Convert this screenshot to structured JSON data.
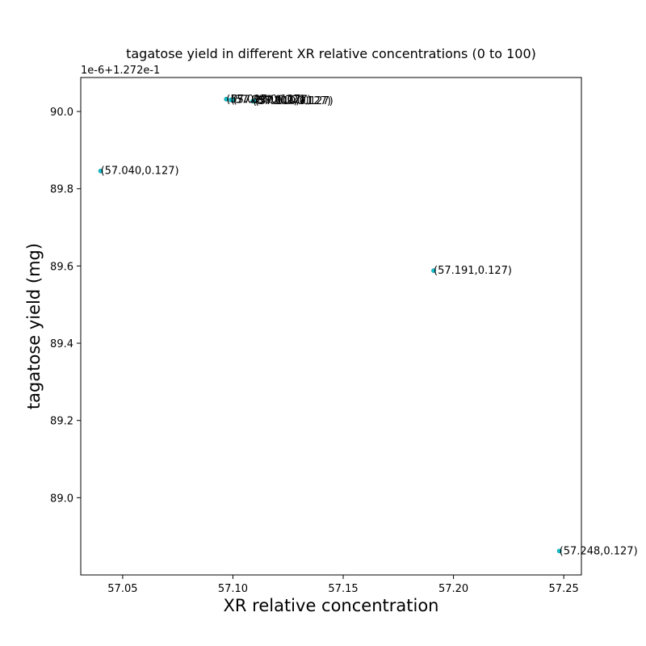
{
  "chart_data": {
    "type": "scatter",
    "title": "tagatose yield in different XR relative concentrations (0 to 100)",
    "xlabel": "XR relative concentration",
    "ylabel": "tagatose yield (mg)",
    "y_offset_label": "1e-6+1.272e-1",
    "xlim": [
      57.031,
      57.258
    ],
    "ylim": [
      88.8,
      90.088
    ],
    "x_ticks": [
      57.05,
      57.1,
      57.15,
      57.2,
      57.25
    ],
    "x_tick_labels": [
      "57.05",
      "57.10",
      "57.15",
      "57.20",
      "57.25"
    ],
    "y_ticks": [
      89.0,
      89.2,
      89.4,
      89.6,
      89.8,
      90.0
    ],
    "y_tick_labels": [
      "89.0",
      "89.2",
      "89.4",
      "89.6",
      "89.8",
      "90.0"
    ],
    "points": [
      {
        "x": 57.04,
        "y": 89.846,
        "label": "(57.040,0.127)"
      },
      {
        "x": 57.097,
        "y": 90.032,
        "label": "(57.097,0.127)"
      },
      {
        "x": 57.099,
        "y": 90.03,
        "label": "(57.099,0.127)"
      },
      {
        "x": 57.1,
        "y": 90.03,
        "label": "(57.100,0.127)"
      },
      {
        "x": 57.109,
        "y": 90.027,
        "label": "(57.109,0.127)"
      },
      {
        "x": 57.11,
        "y": 90.027,
        "label": "(57.110,0.127)"
      },
      {
        "x": 57.191,
        "y": 89.588,
        "label": "(57.191,0.127)"
      },
      {
        "x": 57.248,
        "y": 88.862,
        "label": "(57.248,0.127)"
      }
    ],
    "grid": false,
    "colors": {
      "marker": "#17becf",
      "marker_edge": "#1a9a9a"
    }
  }
}
